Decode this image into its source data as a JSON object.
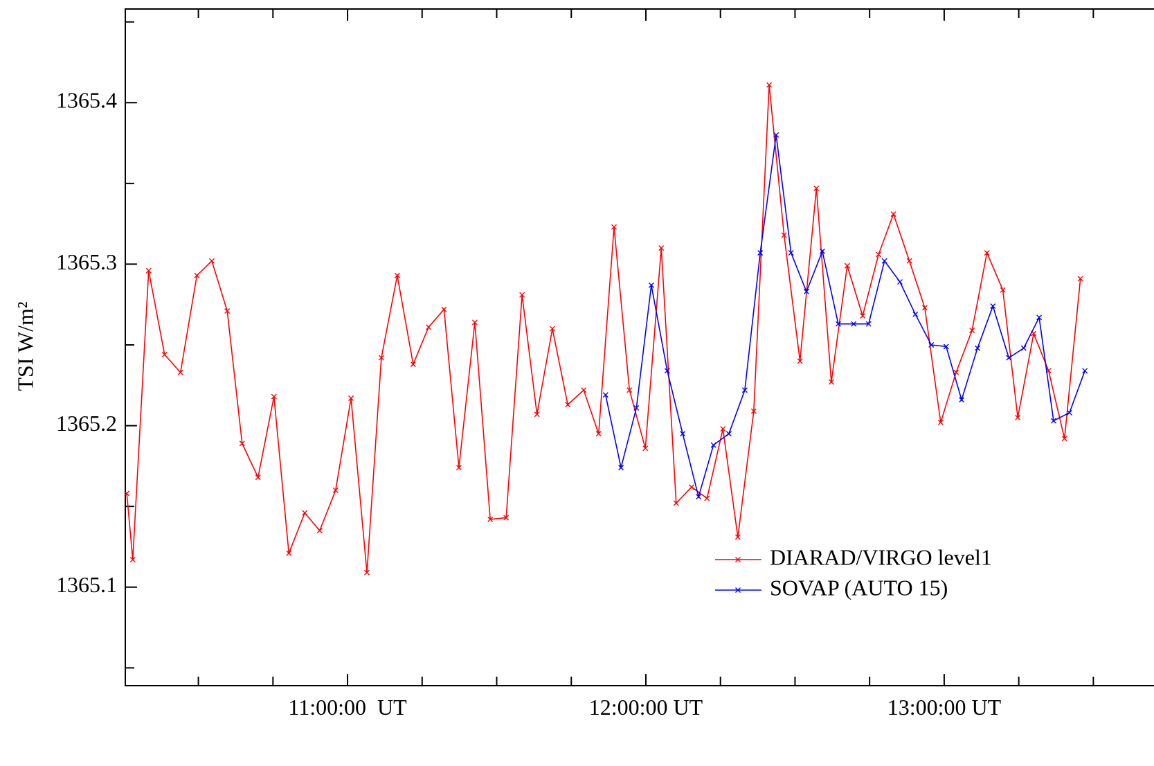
{
  "chart_data": {
    "type": "line",
    "ylabel": "TSI W/m²",
    "xlim": [
      615.3,
      822.2
    ],
    "ylim": [
      1365.039,
      1365.458
    ],
    "xticks": [
      {
        "value": 660,
        "label": "11:00:00  UT"
      },
      {
        "value": 720,
        "label": "12:00:00 UT"
      },
      {
        "value": 780,
        "label": "13:00:00 UT"
      }
    ],
    "xminorticks": [
      630,
      645,
      675,
      690,
      705,
      735,
      750,
      765,
      795,
      810
    ],
    "yticks": [
      1365.1,
      1365.2,
      1365.3,
      1365.4
    ],
    "yminorticks": [
      1365.05,
      1365.15,
      1365.25,
      1365.35,
      1365.45
    ],
    "legend": "lower right",
    "series": [
      {
        "name": "DIARAD/VIRGO level1",
        "color": "#ff0000",
        "x": [
          615.6,
          616.8,
          620.0,
          623.2,
          626.4,
          629.7,
          632.7,
          635.8,
          638.8,
          642.0,
          645.2,
          648.2,
          651.4,
          654.4,
          657.6,
          660.7,
          663.9,
          666.8,
          670.0,
          673.2,
          676.3,
          679.4,
          682.4,
          685.6,
          688.7,
          691.9,
          695.1,
          698.1,
          701.2,
          704.3,
          707.5,
          710.5,
          713.6,
          716.7,
          719.9,
          723.1,
          726.1,
          729.2,
          732.3,
          735.5,
          738.5,
          741.7,
          744.8,
          747.8,
          751.0,
          754.3,
          757.3,
          760.5,
          763.6,
          766.8,
          769.8,
          773.0,
          776.1,
          779.3,
          782.4,
          785.6,
          788.6,
          791.8,
          794.8,
          798.0,
          801.0,
          804.2,
          807.4
        ],
        "values": [
          1365.158,
          1365.117,
          1365.296,
          1365.244,
          1365.233,
          1365.293,
          1365.302,
          1365.271,
          1365.189,
          1365.168,
          1365.218,
          1365.121,
          1365.146,
          1365.135,
          1365.16,
          1365.217,
          1365.109,
          1365.242,
          1365.293,
          1365.238,
          1365.261,
          1365.272,
          1365.174,
          1365.264,
          1365.142,
          1365.143,
          1365.281,
          1365.207,
          1365.26,
          1365.213,
          1365.222,
          1365.195,
          1365.323,
          1365.222,
          1365.186,
          1365.31,
          1365.152,
          1365.162,
          1365.155,
          1365.198,
          1365.131,
          1365.209,
          1365.411,
          1365.318,
          1365.24,
          1365.347,
          1365.227,
          1365.299,
          1365.268,
          1365.306,
          1365.331,
          1365.302,
          1365.273,
          1365.202,
          1365.233,
          1365.259,
          1365.307,
          1365.284,
          1365.205,
          1365.257,
          1365.234,
          1365.192,
          1365.291
        ]
      },
      {
        "name": "SOVAP (AUTO 15)",
        "color": "#0000ff",
        "x": [
          711.9,
          715.0,
          718.1,
          721.1,
          724.3,
          727.4,
          730.6,
          733.6,
          736.7,
          739.9,
          743.0,
          746.2,
          749.2,
          752.3,
          755.5,
          758.7,
          761.8,
          764.8,
          768.0,
          771.1,
          774.2,
          777.4,
          780.4,
          783.5,
          786.7,
          789.8,
          793.0,
          796.0,
          799.1,
          802.0,
          805.2,
          808.3
        ],
        "values": [
          1365.219,
          1365.174,
          1365.211,
          1365.287,
          1365.234,
          1365.195,
          1365.156,
          1365.188,
          1365.195,
          1365.222,
          1365.307,
          1365.38,
          1365.307,
          1365.283,
          1365.308,
          1365.263,
          1365.263,
          1365.263,
          1365.302,
          1365.289,
          1365.269,
          1365.25,
          1365.249,
          1365.216,
          1365.248,
          1365.274,
          1365.242,
          1365.248,
          1365.267,
          1365.203,
          1365.208,
          1365.234
        ]
      }
    ]
  }
}
